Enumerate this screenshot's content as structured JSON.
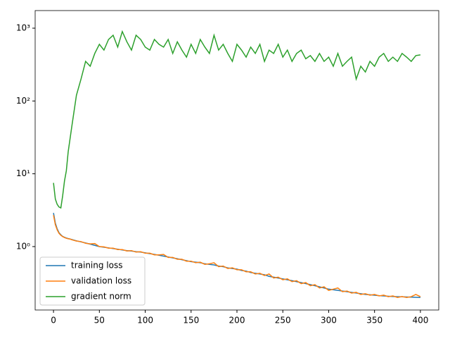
{
  "chart_data": {
    "type": "line",
    "yscale": "log",
    "legend": "lower left",
    "x": [
      0,
      2,
      4,
      6,
      8,
      10,
      12,
      14,
      16,
      18,
      20,
      25,
      30,
      35,
      40,
      45,
      50,
      55,
      60,
      65,
      70,
      75,
      80,
      85,
      90,
      95,
      100,
      105,
      110,
      115,
      120,
      125,
      130,
      135,
      140,
      145,
      150,
      155,
      160,
      165,
      170,
      175,
      180,
      185,
      190,
      195,
      200,
      205,
      210,
      215,
      220,
      225,
      230,
      235,
      240,
      245,
      250,
      255,
      260,
      265,
      270,
      275,
      280,
      285,
      290,
      295,
      300,
      305,
      310,
      315,
      320,
      325,
      330,
      335,
      340,
      345,
      350,
      355,
      360,
      365,
      370,
      375,
      380,
      385,
      390,
      395,
      400
    ],
    "series": [
      {
        "name": "training loss",
        "color": "#1f77b4",
        "values": [
          2.9,
          2.1,
          1.75,
          1.55,
          1.45,
          1.38,
          1.34,
          1.31,
          1.29,
          1.27,
          1.25,
          1.2,
          1.16,
          1.12,
          1.08,
          1.04,
          1.0,
          0.98,
          0.96,
          0.94,
          0.92,
          0.9,
          0.88,
          0.87,
          0.85,
          0.84,
          0.82,
          0.8,
          0.78,
          0.76,
          0.74,
          0.72,
          0.7,
          0.68,
          0.66,
          0.64,
          0.62,
          0.61,
          0.6,
          0.58,
          0.57,
          0.56,
          0.54,
          0.53,
          0.51,
          0.5,
          0.49,
          0.47,
          0.46,
          0.44,
          0.43,
          0.42,
          0.41,
          0.39,
          0.38,
          0.37,
          0.36,
          0.35,
          0.34,
          0.33,
          0.32,
          0.31,
          0.3,
          0.29,
          0.28,
          0.27,
          0.26,
          0.255,
          0.25,
          0.245,
          0.24,
          0.235,
          0.23,
          0.225,
          0.22,
          0.218,
          0.215,
          0.212,
          0.21,
          0.208,
          0.206,
          0.205,
          0.204,
          0.203,
          0.202,
          0.201,
          0.2
        ]
      },
      {
        "name": "validation loss",
        "color": "#ff7f0e",
        "values": [
          2.7,
          2.0,
          1.7,
          1.52,
          1.43,
          1.37,
          1.33,
          1.3,
          1.28,
          1.27,
          1.24,
          1.19,
          1.17,
          1.11,
          1.09,
          1.1,
          1.0,
          0.99,
          0.95,
          0.95,
          0.91,
          0.91,
          0.87,
          0.88,
          0.84,
          0.85,
          0.81,
          0.81,
          0.77,
          0.77,
          0.78,
          0.71,
          0.71,
          0.67,
          0.67,
          0.63,
          0.63,
          0.6,
          0.61,
          0.57,
          0.58,
          0.6,
          0.53,
          0.54,
          0.5,
          0.51,
          0.48,
          0.48,
          0.45,
          0.45,
          0.42,
          0.43,
          0.4,
          0.42,
          0.37,
          0.38,
          0.35,
          0.36,
          0.33,
          0.34,
          0.31,
          0.32,
          0.29,
          0.3,
          0.27,
          0.28,
          0.25,
          0.26,
          0.27,
          0.24,
          0.245,
          0.23,
          0.235,
          0.22,
          0.225,
          0.215,
          0.22,
          0.21,
          0.215,
          0.205,
          0.21,
          0.2,
          0.206,
          0.2,
          0.205,
          0.22,
          0.205
        ]
      },
      {
        "name": "gradient norm",
        "color": "#2ca02c",
        "values": [
          7.5,
          4.5,
          3.8,
          3.5,
          3.4,
          5,
          8,
          11,
          20,
          30,
          45,
          120,
          200,
          350,
          300,
          450,
          600,
          500,
          700,
          800,
          550,
          900,
          650,
          500,
          800,
          700,
          550,
          500,
          700,
          600,
          550,
          700,
          450,
          650,
          500,
          400,
          600,
          450,
          700,
          550,
          450,
          800,
          500,
          600,
          450,
          350,
          600,
          500,
          400,
          550,
          450,
          600,
          350,
          500,
          450,
          600,
          400,
          500,
          350,
          450,
          500,
          380,
          420,
          350,
          450,
          350,
          400,
          300,
          450,
          300,
          350,
          400,
          200,
          300,
          250,
          350,
          300,
          400,
          450,
          350,
          400,
          350,
          450,
          400,
          350,
          420,
          430
        ]
      }
    ],
    "xlim": [
      -20,
      420
    ],
    "xticks": [
      0,
      50,
      100,
      150,
      200,
      250,
      300,
      350,
      400
    ],
    "ylim": [
      0.1345,
      1746
    ],
    "yticks": [
      {
        "value": 1,
        "label": "10⁰"
      },
      {
        "value": 10,
        "label": "10¹"
      },
      {
        "value": 100,
        "label": "10²"
      },
      {
        "value": 1000,
        "label": "10³"
      }
    ]
  }
}
